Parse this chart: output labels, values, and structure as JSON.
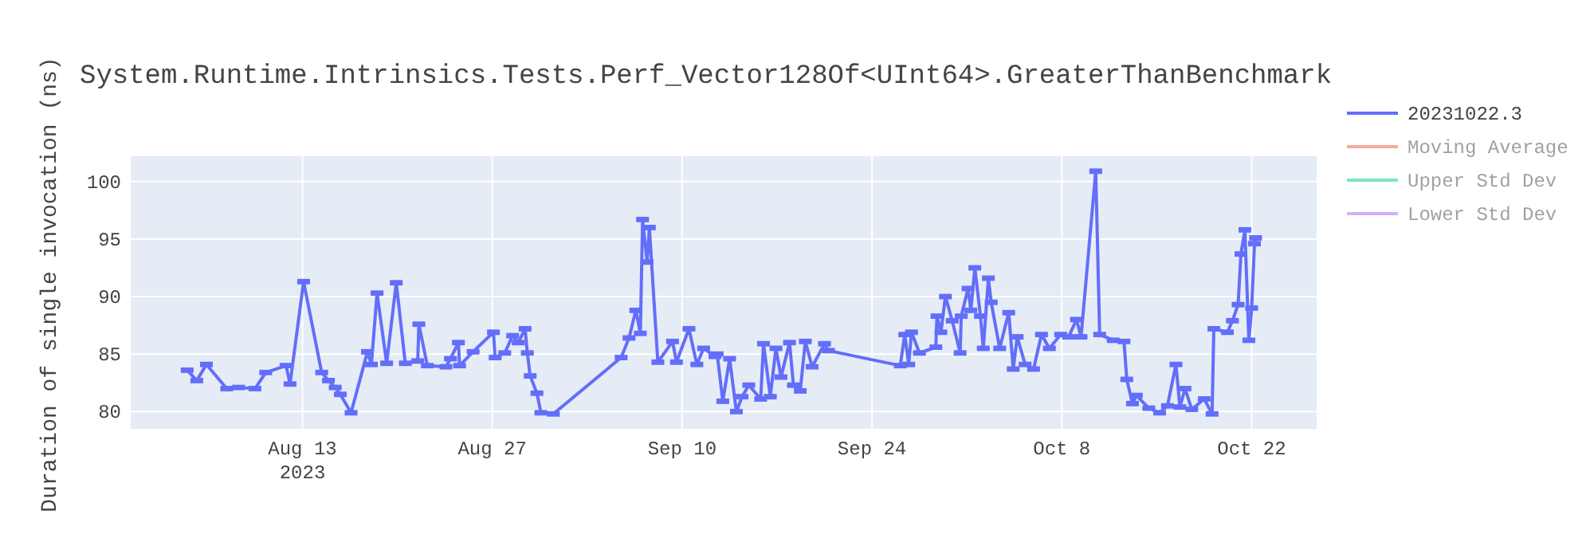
{
  "chart_data": {
    "type": "line",
    "title": "System.Runtime.Intrinsics.Tests.Perf_Vector128Of<UInt64>.GreaterThanBenchmark",
    "ylabel": "Duration of single invocation (ns)",
    "x": [
      "2023-08-04T12:00",
      "2023-08-05T05:00",
      "2023-08-05T22:00",
      "2023-08-07T10:00",
      "2023-08-08T07:00",
      "2023-08-09T12:00",
      "2023-08-10T07:00",
      "2023-08-11T19:00",
      "2023-08-12T02:00",
      "2023-08-13T02:00",
      "2023-08-14T10:00",
      "2023-08-14T22:00",
      "2023-08-15T10:00",
      "2023-08-15T19:00",
      "2023-08-16T14:00",
      "2023-08-17T19:00",
      "2023-08-18T02:00",
      "2023-08-18T12:00",
      "2023-08-19T05:00",
      "2023-08-19T22:00",
      "2023-08-20T14:00",
      "2023-08-21T12:00",
      "2023-08-21T14:00",
      "2023-08-22T05:00",
      "2023-08-23T14:00",
      "2023-08-23T22:00",
      "2023-08-24T12:00",
      "2023-08-24T14:00",
      "2023-08-25T14:00",
      "2023-08-27T02:00",
      "2023-08-27T05:00",
      "2023-08-27T22:00",
      "2023-08-28T12:00",
      "2023-08-28T22:00",
      "2023-08-29T10:00",
      "2023-08-29T14:00",
      "2023-08-29T19:00",
      "2023-08-30T07:00",
      "2023-08-30T14:00",
      "2023-08-31T12:00",
      "2023-09-05T12:00",
      "2023-09-06T02:00",
      "2023-09-06T14:00",
      "2023-09-06T22:00",
      "2023-09-07T02:00",
      "2023-09-07T10:00",
      "2023-09-07T14:00",
      "2023-09-08T05:00",
      "2023-09-09T07:00",
      "2023-09-09T14:00",
      "2023-09-10T12:00",
      "2023-09-11T02:00",
      "2023-09-11T14:00",
      "2023-09-12T10:00",
      "2023-09-12T14:00",
      "2023-09-13T00:00",
      "2023-09-13T12:00",
      "2023-09-14T00:00",
      "2023-09-14T10:00",
      "2023-09-14T22:00",
      "2023-09-15T19:00",
      "2023-09-16T00:00",
      "2023-09-16T12:00",
      "2023-09-16T22:00",
      "2023-09-17T07:00",
      "2023-09-17T22:00",
      "2023-09-18T05:00",
      "2023-09-18T17:00",
      "2023-09-19T02:00",
      "2023-09-19T14:00",
      "2023-09-20T12:00",
      "2023-09-20T19:00",
      "2023-09-26T02:00",
      "2023-09-26T10:00",
      "2023-09-26T17:00",
      "2023-09-26T22:00",
      "2023-09-27T12:00",
      "2023-09-28T17:00",
      "2023-09-28T19:00",
      "2023-09-29T02:00",
      "2023-09-29T10:00",
      "2023-09-29T22:00",
      "2023-09-30T12:00",
      "2023-09-30T14:00",
      "2023-10-01T02:00",
      "2023-10-01T07:00",
      "2023-10-01T14:00",
      "2023-10-02T00:00",
      "2023-10-02T05:00",
      "2023-10-02T14:00",
      "2023-10-02T19:00",
      "2023-10-03T10:00",
      "2023-10-04T02:00",
      "2023-10-04T10:00",
      "2023-10-04T17:00",
      "2023-10-05T07:00",
      "2023-10-05T22:00",
      "2023-10-06T12:00",
      "2023-10-07T02:00",
      "2023-10-07T22:00",
      "2023-10-08T12:00",
      "2023-10-09T02:00",
      "2023-10-09T10:00",
      "2023-10-10T12:00",
      "2023-10-10T19:00",
      "2023-10-11T19:00",
      "2023-10-12T14:00",
      "2023-10-12T19:00",
      "2023-10-13T05:00",
      "2023-10-13T12:00",
      "2023-10-14T10:00",
      "2023-10-15T05:00",
      "2023-10-15T19:00",
      "2023-10-16T10:00",
      "2023-10-16T17:00",
      "2023-10-17T02:00",
      "2023-10-17T14:00",
      "2023-10-18T12:00",
      "2023-10-19T02:00",
      "2023-10-19T05:00",
      "2023-10-20T05:00",
      "2023-10-20T14:00",
      "2023-10-21T00:00",
      "2023-10-21T05:00",
      "2023-10-21T12:00",
      "2023-10-21T19:00",
      "2023-10-22T00:00",
      "2023-10-22T05:00",
      "2023-10-22T07:00"
    ],
    "xlim": [
      "2023-07-31T08:00",
      "2023-10-26T19:00"
    ],
    "xticks": [
      {
        "value": "2023-08-13",
        "label": "Aug 13\n2023"
      },
      {
        "value": "2023-08-27",
        "label": "Aug 27"
      },
      {
        "value": "2023-09-10",
        "label": "Sep 10"
      },
      {
        "value": "2023-09-24",
        "label": "Sep 24"
      },
      {
        "value": "2023-10-08",
        "label": "Oct 8"
      },
      {
        "value": "2023-10-22",
        "label": "Oct 22"
      }
    ],
    "ylim": [
      78.5,
      102.2
    ],
    "yticks": [
      80,
      85,
      90,
      95,
      100
    ],
    "grid": true,
    "legend": "top right",
    "series": [
      {
        "name": "20231022.3",
        "color": "#636efa",
        "values": [
          83.6,
          82.7,
          84.1,
          82.0,
          82.1,
          82.0,
          83.4,
          84.0,
          82.4,
          91.3,
          83.4,
          82.7,
          82.1,
          81.5,
          79.9,
          85.2,
          84.1,
          90.3,
          84.2,
          91.2,
          84.2,
          84.4,
          87.6,
          84.0,
          83.9,
          84.6,
          86.0,
          84.0,
          85.2,
          86.9,
          84.7,
          85.1,
          86.6,
          86.0,
          87.2,
          85.1,
          83.1,
          81.6,
          79.9,
          79.8,
          84.7,
          86.4,
          88.8,
          86.8,
          96.7,
          93.0,
          96.0,
          84.3,
          86.1,
          84.3,
          87.2,
          84.1,
          85.5,
          84.8,
          85.0,
          80.9,
          84.6,
          80.0,
          81.3,
          82.3,
          81.1,
          85.9,
          81.3,
          85.5,
          83.0,
          86.0,
          82.3,
          81.8,
          86.1,
          83.9,
          85.9,
          85.3,
          84.0,
          86.7,
          84.1,
          86.9,
          85.1,
          85.6,
          88.3,
          86.9,
          90.0,
          87.9,
          85.1,
          88.3,
          90.7,
          88.8,
          92.5,
          88.3,
          85.5,
          91.6,
          89.5,
          85.5,
          88.6,
          83.7,
          86.5,
          84.1,
          83.7,
          86.7,
          85.5,
          86.7,
          86.5,
          88.0,
          86.5,
          100.9,
          86.7,
          86.2,
          86.1,
          82.8,
          80.7,
          81.4,
          80.3,
          79.9,
          80.5,
          84.1,
          80.4,
          82.0,
          80.2,
          81.1,
          79.8,
          87.2,
          86.9,
          87.9,
          89.3,
          93.7,
          95.8,
          86.2,
          89.0,
          94.6,
          95.1
        ],
        "errors": [
          0.1,
          0.1,
          0.1,
          0.1,
          0.1,
          0.1,
          0.1,
          0.1,
          0.1,
          0.1,
          0.1,
          0.1,
          0.1,
          0.1,
          0.1,
          0.1,
          0.1,
          0.1,
          0.1,
          0.1,
          0.1,
          0.1,
          0.1,
          0.1,
          0.1,
          0.1,
          0.1,
          0.1,
          0.1,
          0.1,
          0.1,
          0.1,
          0.1,
          0.1,
          0.1,
          0.1,
          0.1,
          0.1,
          0.1,
          0.1,
          0.1,
          0.1,
          0.1,
          0.1,
          0.1,
          0.1,
          0.1,
          0.1,
          0.1,
          0.1,
          0.1,
          0.1,
          0.1,
          0.1,
          0.1,
          0.1,
          0.1,
          0.1,
          0.1,
          0.1,
          0.1,
          0.1,
          0.1,
          0.1,
          0.1,
          0.1,
          0.1,
          0.1,
          0.1,
          0.1,
          0.1,
          0.1,
          0.1,
          0.1,
          0.1,
          0.1,
          0.1,
          0.1,
          0.1,
          0.1,
          0.1,
          0.1,
          0.1,
          0.1,
          0.1,
          0.1,
          0.1,
          0.1,
          0.1,
          0.1,
          0.1,
          0.1,
          0.1,
          0.1,
          0.1,
          0.1,
          0.1,
          0.1,
          0.1,
          0.1,
          0.1,
          0.1,
          0.1,
          0.1,
          0.1,
          0.1,
          0.1,
          0.1,
          0.1,
          0.1,
          0.1,
          0.1,
          0.1,
          0.1,
          0.1,
          0.1,
          0.1,
          0.1,
          0.1,
          0.1,
          0.1,
          0.1,
          0.1,
          0.1,
          0.1,
          0.1,
          0.1,
          0.1,
          0.1
        ]
      },
      {
        "name": "Moving Average",
        "color": "#ef553b",
        "values": [
          null,
          null,
          null,
          null,
          null,
          null,
          null,
          null,
          null,
          null,
          null,
          null,
          null,
          null,
          null,
          null,
          null,
          null,
          null,
          null,
          null,
          null,
          null,
          null,
          null,
          null,
          null,
          null,
          null,
          null,
          null,
          null,
          null,
          null,
          null,
          null,
          null,
          null,
          null,
          null,
          null,
          null,
          null,
          null,
          null,
          null,
          null,
          null,
          null,
          null,
          null,
          null,
          null,
          null,
          null,
          null,
          null,
          null,
          null,
          null,
          null,
          null,
          null,
          null,
          null,
          null,
          null,
          null,
          null,
          null,
          null,
          null,
          null,
          null,
          null,
          null,
          null,
          null,
          null,
          null,
          null,
          null,
          null,
          null,
          null,
          null,
          null,
          null,
          null,
          null,
          null,
          null,
          null,
          null,
          null,
          null,
          null,
          null,
          null,
          null,
          null,
          null,
          null,
          null,
          null,
          null,
          null,
          null,
          null,
          null,
          null,
          null,
          null,
          null,
          null,
          null,
          null,
          null,
          null,
          null,
          null,
          null,
          null,
          null,
          null,
          null,
          null,
          null,
          null
        ]
      },
      {
        "name": "Upper Std Dev",
        "color": "#00cc96",
        "values": [
          null,
          null,
          null,
          null,
          null,
          null,
          null,
          null,
          null,
          null,
          null,
          null,
          null,
          null,
          null,
          null,
          null,
          null,
          null,
          null,
          null,
          null,
          null,
          null,
          null,
          null,
          null,
          null,
          null,
          null,
          null,
          null,
          null,
          null,
          null,
          null,
          null,
          null,
          null,
          null,
          null,
          null,
          null,
          null,
          null,
          null,
          null,
          null,
          null,
          null,
          null,
          null,
          null,
          null,
          null,
          null,
          null,
          null,
          null,
          null,
          null,
          null,
          null,
          null,
          null,
          null,
          null,
          null,
          null,
          null,
          null,
          null,
          null,
          null,
          null,
          null,
          null,
          null,
          null,
          null,
          null,
          null,
          null,
          null,
          null,
          null,
          null,
          null,
          null,
          null,
          null,
          null,
          null,
          null,
          null,
          null,
          null,
          null,
          null,
          null,
          null,
          null,
          null,
          null,
          null,
          null,
          null,
          null,
          null,
          null,
          null,
          null,
          null,
          null,
          null,
          null,
          null,
          null,
          null,
          null,
          null,
          null,
          null,
          null,
          null,
          null,
          null,
          null,
          null
        ]
      },
      {
        "name": "Lower Std Dev",
        "color": "#ab63fa",
        "values": [
          null,
          null,
          null,
          null,
          null,
          null,
          null,
          null,
          null,
          null,
          null,
          null,
          null,
          null,
          null,
          null,
          null,
          null,
          null,
          null,
          null,
          null,
          null,
          null,
          null,
          null,
          null,
          null,
          null,
          null,
          null,
          null,
          null,
          null,
          null,
          null,
          null,
          null,
          null,
          null,
          null,
          null,
          null,
          null,
          null,
          null,
          null,
          null,
          null,
          null,
          null,
          null,
          null,
          null,
          null,
          null,
          null,
          null,
          null,
          null,
          null,
          null,
          null,
          null,
          null,
          null,
          null,
          null,
          null,
          null,
          null,
          null,
          null,
          null,
          null,
          null,
          null,
          null,
          null,
          null,
          null,
          null,
          null,
          null,
          null,
          null,
          null,
          null,
          null,
          null,
          null,
          null,
          null,
          null,
          null,
          null,
          null,
          null,
          null,
          null,
          null,
          null,
          null,
          null,
          null,
          null,
          null,
          null,
          null,
          null,
          null,
          null,
          null,
          null,
          null,
          null,
          null,
          null,
          null,
          null,
          null,
          null,
          null,
          null,
          null,
          null,
          null,
          null,
          null
        ]
      }
    ]
  }
}
